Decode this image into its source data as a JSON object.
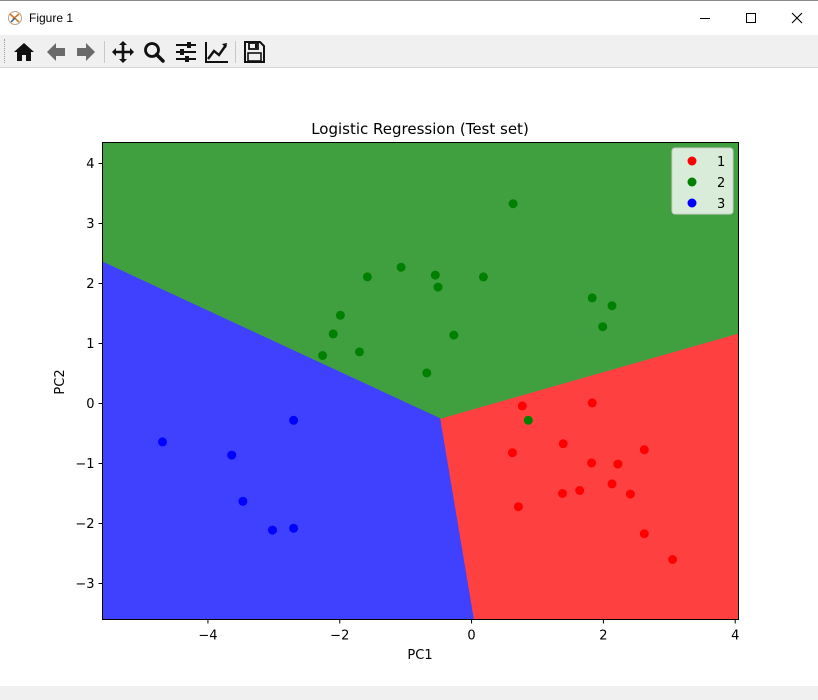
{
  "window": {
    "title": "Figure 1"
  },
  "toolbar": {
    "buttons": [
      "home-icon",
      "back-arrow-icon",
      "forward-arrow-icon",
      "pan-icon",
      "zoom-icon",
      "subplots-config-icon",
      "edit-axes-icon",
      "save-icon"
    ]
  },
  "chart_data": {
    "type": "scatter",
    "title": "Logistic Regression (Test set)",
    "xlabel": "PC1",
    "ylabel": "PC2",
    "xlim": [
      -5.6,
      4.05
    ],
    "ylim": [
      -3.6,
      4.35
    ],
    "xticks": [
      -4,
      -2,
      0,
      2,
      4
    ],
    "xtick_labels": [
      "−4",
      "−2",
      "0",
      "2",
      "4"
    ],
    "yticks": [
      -3,
      -2,
      -1,
      0,
      1,
      2,
      3,
      4
    ],
    "ytick_labels": [
      "−3",
      "−2",
      "−1",
      "0",
      "1",
      "2",
      "3",
      "4"
    ],
    "grid": false,
    "legend_position": "top-right",
    "regions": [
      {
        "class": "1",
        "color": "#ff4040",
        "polygon": [
          [
            -0.48,
            -0.25
          ],
          [
            4.05,
            1.17
          ],
          [
            4.05,
            -3.6
          ],
          [
            0.03,
            -3.6
          ]
        ]
      },
      {
        "class": "2",
        "color": "#40a040",
        "polygon": [
          [
            -5.6,
            4.35
          ],
          [
            4.05,
            4.35
          ],
          [
            4.05,
            1.17
          ],
          [
            -0.48,
            -0.25
          ],
          [
            -5.6,
            2.36
          ]
        ]
      },
      {
        "class": "3",
        "color": "#4040ff",
        "polygon": [
          [
            -5.6,
            2.36
          ],
          [
            -0.48,
            -0.25
          ],
          [
            0.03,
            -3.6
          ],
          [
            -5.6,
            -3.6
          ]
        ]
      }
    ],
    "series": [
      {
        "name": "1",
        "color": "#ff0000",
        "points": [
          [
            0.77,
            -0.04
          ],
          [
            1.83,
            0.01
          ],
          [
            0.62,
            -0.82
          ],
          [
            1.39,
            -0.67
          ],
          [
            2.62,
            -0.77
          ],
          [
            1.82,
            -0.99
          ],
          [
            2.22,
            -1.01
          ],
          [
            2.13,
            -1.34
          ],
          [
            1.64,
            -1.45
          ],
          [
            1.38,
            -1.5
          ],
          [
            2.41,
            -1.51
          ],
          [
            0.71,
            -1.72
          ],
          [
            2.62,
            -2.17
          ],
          [
            3.05,
            -2.6
          ]
        ]
      },
      {
        "name": "2",
        "color": "#008000",
        "points": [
          [
            0.63,
            3.33
          ],
          [
            -1.07,
            2.27
          ],
          [
            -0.55,
            2.14
          ],
          [
            -1.58,
            2.11
          ],
          [
            0.18,
            2.11
          ],
          [
            -0.51,
            1.94
          ],
          [
            1.83,
            1.76
          ],
          [
            2.13,
            1.63
          ],
          [
            -1.99,
            1.47
          ],
          [
            1.99,
            1.28
          ],
          [
            -2.1,
            1.16
          ],
          [
            -0.27,
            1.14
          ],
          [
            -1.7,
            0.86
          ],
          [
            -2.26,
            0.8
          ],
          [
            -0.68,
            0.51
          ],
          [
            0.86,
            -0.28
          ]
        ]
      },
      {
        "name": "3",
        "color": "#0000ff",
        "points": [
          [
            -2.7,
            -0.28
          ],
          [
            -4.69,
            -0.64
          ],
          [
            -3.64,
            -0.86
          ],
          [
            -3.47,
            -1.63
          ],
          [
            -2.7,
            -2.08
          ],
          [
            -3.02,
            -2.11
          ]
        ]
      }
    ]
  }
}
